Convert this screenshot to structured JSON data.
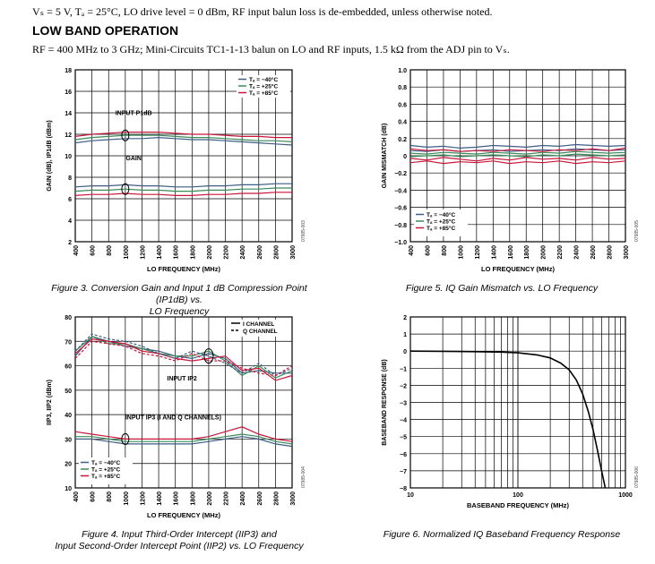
{
  "header": {
    "conditions": "Vₛ = 5 V, Tₐ = 25°C, LO drive level = 0 dBm, RF input balun loss is de-embedded, unless otherwise noted.",
    "section_title": "LOW BAND OPERATION",
    "subtitle": "RF = 400 MHz to 3 GHz; Mini-Circuits TC1-1-13 balun on LO and RF inputs, 1.5 kΩ from the ADJ pin to Vₛ."
  },
  "colors": {
    "minus40": "#3d5d85",
    "plus25": "#3c8a5a",
    "plus85": "#c8163a",
    "black": "#000000"
  },
  "legend_temps": [
    "Tₐ = −40°C",
    "Tₐ = +25°C",
    "Tₐ = +85°C"
  ],
  "chart_data": [
    {
      "id": "fig3",
      "type": "line",
      "caption": "Figure 3. Conversion Gain and Input 1 dB Compression Point (IP1dB) vs. LO Frequency",
      "caption_lines": [
        "Figure 3. Conversion Gain and Input 1 dB Compression Point (IP1dB) vs.",
        "LO Frequency"
      ],
      "xlabel": "LO FREQUENCY (MHz)",
      "ylabel": "GAIN (dB), IP1dB (dBm)",
      "xlim": [
        400,
        3000
      ],
      "ylim": [
        2,
        18
      ],
      "xticks": [
        400,
        600,
        800,
        1000,
        1200,
        1400,
        1600,
        1800,
        2000,
        2200,
        2400,
        2600,
        2800,
        3000
      ],
      "yticks": [
        2,
        4,
        6,
        8,
        10,
        12,
        14,
        16,
        18
      ],
      "code": "07985-003",
      "annotations": [
        "INPUT P1dB",
        "GAIN"
      ],
      "legend": "top-right",
      "x": [
        400,
        600,
        800,
        1000,
        1200,
        1400,
        1600,
        1800,
        2000,
        2200,
        2400,
        2600,
        2800,
        3000
      ],
      "series": [
        {
          "name": "P1dB −40°C",
          "group": "minus40",
          "values": [
            11.2,
            11.4,
            11.5,
            11.6,
            11.6,
            11.7,
            11.6,
            11.5,
            11.5,
            11.4,
            11.3,
            11.2,
            11.1,
            11.0
          ]
        },
        {
          "name": "P1dB +25°C",
          "group": "plus25",
          "values": [
            11.5,
            11.7,
            11.8,
            11.9,
            11.9,
            11.9,
            11.8,
            11.7,
            11.7,
            11.6,
            11.5,
            11.4,
            11.4,
            11.3
          ]
        },
        {
          "name": "P1dB +85°C",
          "group": "plus85",
          "values": [
            11.8,
            12.0,
            12.1,
            12.2,
            12.2,
            12.2,
            12.1,
            12.0,
            12.0,
            11.9,
            11.8,
            11.8,
            11.7,
            11.7
          ]
        },
        {
          "name": "Gain −40°C",
          "group": "minus40",
          "values": [
            7.1,
            7.2,
            7.2,
            7.3,
            7.2,
            7.2,
            7.1,
            7.1,
            7.2,
            7.2,
            7.3,
            7.3,
            7.4,
            7.4
          ]
        },
        {
          "name": "Gain +25°C",
          "group": "plus25",
          "values": [
            6.7,
            6.8,
            6.8,
            6.9,
            6.8,
            6.8,
            6.7,
            6.7,
            6.8,
            6.8,
            6.9,
            6.9,
            7.0,
            7.0
          ]
        },
        {
          "name": "Gain +85°C",
          "group": "plus85",
          "values": [
            6.3,
            6.4,
            6.4,
            6.5,
            6.4,
            6.4,
            6.3,
            6.3,
            6.4,
            6.4,
            6.5,
            6.5,
            6.6,
            6.6
          ]
        }
      ]
    },
    {
      "id": "fig5",
      "type": "line",
      "caption": "Figure 5. IQ Gain Mismatch vs. LO Frequency",
      "caption_lines": [
        "Figure 5. IQ Gain Mismatch vs. LO Frequency"
      ],
      "xlabel": "LO FREQUENCY (MHz)",
      "ylabel": "GAIN MISMATCH (dB)",
      "xlim": [
        400,
        3000
      ],
      "ylim": [
        -1.0,
        1.0
      ],
      "xticks": [
        400,
        600,
        800,
        1000,
        1200,
        1400,
        1600,
        1800,
        2000,
        2200,
        2400,
        2600,
        2800,
        3000
      ],
      "yticks": [
        -1.0,
        -0.8,
        -0.6,
        -0.4,
        -0.2,
        0,
        0.2,
        0.4,
        0.6,
        0.8,
        1.0
      ],
      "code": "07985-005",
      "legend": "bottom-left",
      "x": [
        400,
        600,
        800,
        1000,
        1200,
        1400,
        1600,
        1800,
        2000,
        2200,
        2400,
        2600,
        2800,
        3000
      ],
      "series": [
        {
          "name": "−40°C a",
          "group": "minus40",
          "values": [
            0.12,
            0.1,
            0.11,
            0.09,
            0.1,
            0.12,
            0.11,
            0.1,
            0.12,
            0.11,
            0.13,
            0.12,
            0.11,
            0.12
          ]
        },
        {
          "name": "−40°C b",
          "group": "minus40",
          "values": [
            0.06,
            0.05,
            0.07,
            0.05,
            0.06,
            0.07,
            0.05,
            0.06,
            0.07,
            0.06,
            0.08,
            0.07,
            0.06,
            0.07
          ]
        },
        {
          "name": "+25°C a",
          "group": "plus25",
          "values": [
            0.03,
            0.02,
            0.04,
            0.03,
            0.02,
            0.04,
            0.03,
            0.02,
            0.04,
            0.03,
            0.05,
            0.04,
            0.03,
            0.04
          ]
        },
        {
          "name": "+25°C b",
          "group": "plus25",
          "values": [
            -0.01,
            0.0,
            0.01,
            -0.01,
            0.0,
            0.01,
            0.0,
            -0.01,
            0.01,
            0.0,
            0.02,
            0.01,
            0.0,
            0.01
          ]
        },
        {
          "name": "+85°C a",
          "group": "plus85",
          "values": [
            0.08,
            0.06,
            0.07,
            0.05,
            0.06,
            0.05,
            0.07,
            0.06,
            0.05,
            0.07,
            0.06,
            0.08,
            0.06,
            0.09
          ]
        },
        {
          "name": "+85°C b",
          "group": "plus85",
          "values": [
            -0.03,
            -0.05,
            -0.02,
            -0.04,
            -0.06,
            -0.03,
            -0.05,
            -0.02,
            -0.04,
            -0.03,
            -0.05,
            -0.02,
            -0.04,
            -0.03
          ]
        },
        {
          "name": "+85°C c",
          "group": "plus85",
          "values": [
            -0.08,
            -0.06,
            -0.09,
            -0.07,
            -0.08,
            -0.06,
            -0.09,
            -0.07,
            -0.08,
            -0.06,
            -0.09,
            -0.07,
            -0.08,
            -0.06
          ]
        }
      ]
    },
    {
      "id": "fig4",
      "type": "line",
      "caption": "Figure 4. Input Third-Order Intercept (IIP3) and Input Second-Order Intercept Point (IIP2) vs. LO Frequency",
      "caption_lines": [
        "Figure 4. Input Third-Order Intercept (IIP3) and",
        "Input Second-Order Intercept Point (IIP2) vs. LO Frequency"
      ],
      "xlabel": "LO FREQUENCY (MHz)",
      "ylabel": "IIP3, IIP2 (dBm)",
      "xlim": [
        400,
        3000
      ],
      "ylim": [
        10,
        80
      ],
      "xticks": [
        400,
        600,
        800,
        1000,
        1200,
        1400,
        1600,
        1800,
        2000,
        2200,
        2400,
        2600,
        2800,
        3000
      ],
      "yticks": [
        10,
        20,
        30,
        40,
        50,
        60,
        70,
        80
      ],
      "code": "07985-004",
      "annotations": [
        "INPUT IP2",
        "INPUT IP3 (I AND Q CHANNELS)"
      ],
      "legend_channels": [
        "I CHANNEL",
        "Q CHANNEL"
      ],
      "legend": "bottom-left",
      "x": [
        400,
        600,
        800,
        1000,
        1200,
        1400,
        1600,
        1800,
        2000,
        2200,
        2400,
        2600,
        2800,
        3000
      ],
      "series": [
        {
          "name": "IIP2 I −40°C",
          "group": "minus40",
          "channel": "I",
          "values": [
            64,
            72,
            70,
            68,
            67,
            66,
            64,
            63,
            65,
            63,
            57,
            58,
            57,
            57
          ]
        },
        {
          "name": "IIP2 I +25°C",
          "group": "plus25",
          "channel": "I",
          "values": [
            66,
            72,
            69,
            69,
            67,
            65,
            64,
            64,
            66,
            62,
            56,
            60,
            55,
            58
          ]
        },
        {
          "name": "IIP2 I +85°C",
          "group": "plus85",
          "channel": "I",
          "values": [
            65,
            71,
            70,
            69,
            66,
            65,
            63,
            62,
            63,
            64,
            58,
            59,
            54,
            56
          ]
        },
        {
          "name": "IIP2 Q −40°C",
          "group": "minus40",
          "channel": "Q",
          "values": [
            66,
            73,
            71,
            70,
            68,
            65,
            63,
            66,
            64,
            61,
            57,
            61,
            56,
            59
          ]
        },
        {
          "name": "IIP2 Q +85°C",
          "group": "plus85",
          "channel": "Q",
          "values": [
            63,
            70,
            69,
            68,
            65,
            64,
            62,
            65,
            62,
            62,
            59,
            57,
            56,
            60
          ]
        },
        {
          "name": "IIP3 −40°C",
          "group": "minus40",
          "channel": "I",
          "values": [
            30,
            30,
            29,
            28,
            28,
            28,
            28,
            28,
            29,
            30,
            31,
            30,
            28,
            27
          ]
        },
        {
          "name": "IIP3 +25°C",
          "group": "plus25",
          "channel": "I",
          "values": [
            31,
            31,
            30,
            29,
            29,
            29,
            29,
            29,
            30,
            31,
            32,
            31,
            29,
            28
          ]
        },
        {
          "name": "IIP3 +85°C",
          "group": "plus85",
          "channel": "I",
          "values": [
            33,
            32,
            31,
            30,
            30,
            30,
            30,
            30,
            31,
            33,
            35,
            32,
            30,
            29
          ]
        }
      ]
    },
    {
      "id": "fig6",
      "type": "line",
      "caption": "Figure 6. Normalized IQ Baseband Frequency Response",
      "caption_lines": [
        "Figure 6. Normalized IQ Baseband Frequency Response"
      ],
      "xlabel": "BASEBAND FREQUENCY (MHz)",
      "ylabel": "BASEBAND RESPONSE (dB)",
      "xscale": "log",
      "xlim": [
        10,
        1000
      ],
      "ylim": [
        -8,
        2
      ],
      "xtick_labels": [
        10,
        100,
        1000
      ],
      "yticks": [
        -8,
        -7,
        -6,
        -5,
        -4,
        -3,
        -2,
        -1,
        0,
        1,
        2
      ],
      "code": "07985-006",
      "x": [
        10,
        20,
        40,
        70,
        100,
        150,
        200,
        250,
        300,
        350,
        400,
        450,
        500,
        550,
        600,
        650
      ],
      "series": [
        {
          "name": "Response",
          "group": "black",
          "values": [
            0,
            -0.01,
            -0.03,
            -0.06,
            -0.1,
            -0.22,
            -0.4,
            -0.7,
            -1.1,
            -1.7,
            -2.5,
            -3.5,
            -4.6,
            -5.8,
            -7.0,
            -8.0
          ]
        }
      ]
    }
  ]
}
